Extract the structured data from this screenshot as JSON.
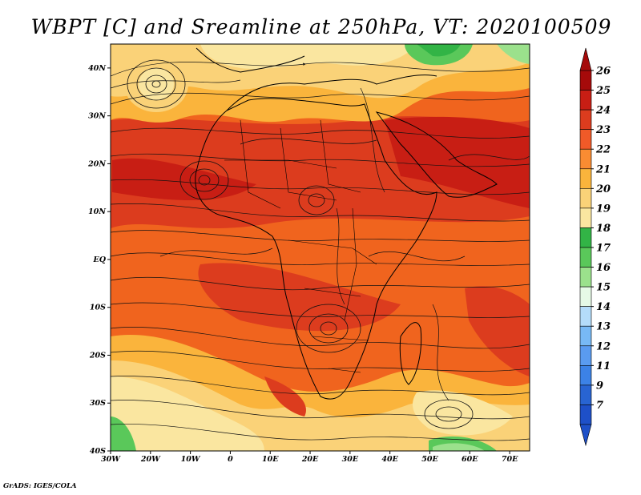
{
  "title": "WBPT [C] and Sreamline at 250hPa, VT: 2020100509",
  "credit": "GrADS: IGES/COLA",
  "map": {
    "lon_range": [
      -30,
      75
    ],
    "lat_range": [
      -40,
      45
    ],
    "lon_ticks": [
      {
        "lon": -30,
        "label": "30W"
      },
      {
        "lon": -20,
        "label": "20W"
      },
      {
        "lon": -10,
        "label": "10W"
      },
      {
        "lon": 0,
        "label": "0"
      },
      {
        "lon": 10,
        "label": "10E"
      },
      {
        "lon": 20,
        "label": "20E"
      },
      {
        "lon": 30,
        "label": "30E"
      },
      {
        "lon": 40,
        "label": "40E"
      },
      {
        "lon": 50,
        "label": "50E"
      },
      {
        "lon": 60,
        "label": "60E"
      },
      {
        "lon": 70,
        "label": "70E"
      }
    ],
    "lat_ticks": [
      {
        "lat": 40,
        "label": "40N"
      },
      {
        "lat": 30,
        "label": "30N"
      },
      {
        "lat": 20,
        "label": "20N"
      },
      {
        "lat": 10,
        "label": "10N"
      },
      {
        "lat": 0,
        "label": "EQ"
      },
      {
        "lat": -10,
        "label": "10S"
      },
      {
        "lat": -20,
        "label": "20S"
      },
      {
        "lat": -30,
        "label": "30S"
      },
      {
        "lat": -40,
        "label": "40S"
      }
    ]
  },
  "colorbar": {
    "levels": [
      {
        "label": "26",
        "color": "#a50a0a"
      },
      {
        "label": "25",
        "color": "#c81e14"
      },
      {
        "label": "24",
        "color": "#dc3c1e"
      },
      {
        "label": "23",
        "color": "#f05a28"
      },
      {
        "label": "22",
        "color": "#fa8c32"
      },
      {
        "label": "21",
        "color": "#fab43c"
      },
      {
        "label": "20",
        "color": "#fad278"
      },
      {
        "label": "19",
        "color": "#fae6a0"
      },
      {
        "label": "18",
        "color": "#32b446"
      },
      {
        "label": "17",
        "color": "#5ac85a"
      },
      {
        "label": "16",
        "color": "#9be18c"
      },
      {
        "label": "15",
        "color": "#e6fae6"
      },
      {
        "label": "14",
        "color": "#b4dcfa"
      },
      {
        "label": "13",
        "color": "#78b9f5"
      },
      {
        "label": "12",
        "color": "#5a9bf0"
      },
      {
        "label": "11",
        "color": "#3c82e6"
      },
      {
        "label": "9",
        "color": "#2864d2"
      },
      {
        "label": "7",
        "color": "#1e50c8"
      }
    ]
  }
}
